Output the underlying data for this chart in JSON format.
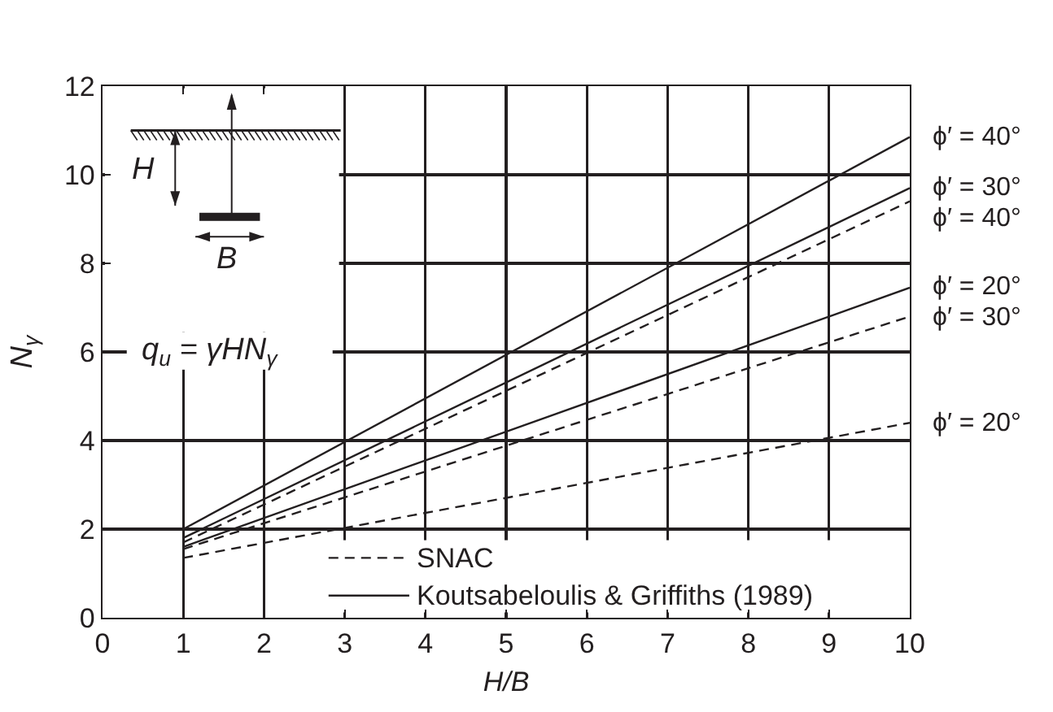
{
  "chart_data": {
    "type": "line",
    "xlabel": "H/B",
    "ylabel": "N$_{γ}$",
    "x": [
      1,
      10
    ],
    "series": [
      {
        "name": "ϕ′ = 40°",
        "color": "#231f20",
        "values": [
          2.0,
          10.85
        ],
        "line_style": "solid"
      },
      {
        "name": "ϕ′ = 30°",
        "color": "#231f20",
        "values": [
          1.8,
          9.7
        ],
        "line_style": "solid"
      },
      {
        "name": "ϕ′ = 40°",
        "color": "#231f20",
        "values": [
          1.7,
          9.4
        ],
        "line_style": "dashed"
      },
      {
        "name": "ϕ′ = 20°",
        "color": "#231f20",
        "values": [
          1.6,
          7.45
        ],
        "line_style": "solid"
      },
      {
        "name": "ϕ′ = 30°",
        "color": "#231f20",
        "values": [
          1.55,
          6.8
        ],
        "line_style": "dashed"
      },
      {
        "name": "ϕ′ = 20°",
        "color": "#231f20",
        "values": [
          1.35,
          4.4
        ],
        "line_style": "dashed"
      }
    ],
    "xlim": [
      0,
      10
    ],
    "xticks": [
      0,
      1,
      2,
      3,
      4,
      5,
      6,
      7,
      8,
      9,
      10
    ],
    "ylim": [
      0,
      12
    ],
    "yticks": [
      0,
      2,
      4,
      6,
      8,
      10,
      12
    ],
    "grid": true,
    "legend": "right",
    "marker": "none",
    "annotations": [
      "q$_{u}$ = γHN$_{γ}$",
      "H",
      "B",
      "SNAC",
      "Koutsabeloulis & Griffiths (1989)"
    ]
  }
}
